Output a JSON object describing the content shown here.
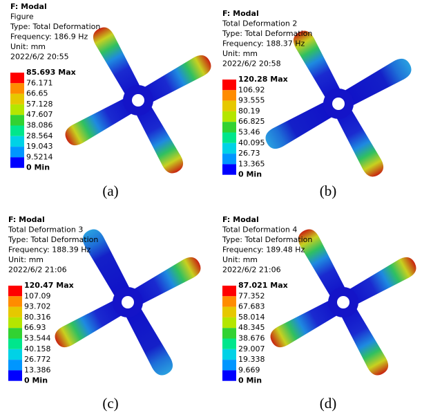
{
  "panels": [
    {
      "header": [
        "F: Modal",
        "Figure",
        "Type: Total Deformation",
        "Frequency: 186.9 Hz",
        "Unit: mm",
        "2022/6/2 20:55"
      ],
      "legend": [
        "85.693 Max",
        "76.171",
        "66.65",
        "57.128",
        "47.607",
        "38.086",
        "28.564",
        "19.043",
        "9.5214",
        "0 Min"
      ],
      "caption": "(a)"
    },
    {
      "header": [
        "F: Modal",
        "Total Deformation 2",
        "Type: Total Deformation",
        "Frequency: 188.37 Hz",
        "Unit: mm",
        "2022/6/2 20:58"
      ],
      "legend": [
        "120.28 Max",
        "106.92",
        "93.555",
        "80.19",
        "66.825",
        "53.46",
        "40.095",
        "26.73",
        "13.365",
        "0 Min"
      ],
      "caption": "(b)"
    },
    {
      "header": [
        "F: Modal",
        "Total Deformation 3",
        "Type: Total Deformation",
        "Frequency: 188.39 Hz",
        "Unit: mm",
        "2022/6/2 21:06"
      ],
      "legend": [
        "120.47 Max",
        "107.09",
        "93.702",
        "80.316",
        "66.93",
        "53.544",
        "40.158",
        "26.772",
        "13.386",
        "0 Min"
      ],
      "caption": "(c)"
    },
    {
      "header": [
        "F: Modal",
        "Total Deformation 4",
        "Type: Total Deformation",
        "Frequency: 189.48 Hz",
        "Unit: mm",
        "2022/6/2 21:06"
      ],
      "legend": [
        "87.021 Max",
        "77.352",
        "67.683",
        "58.014",
        "48.345",
        "38.676",
        "29.007",
        "19.338",
        "9.669",
        "0 Min"
      ],
      "caption": "(d)"
    }
  ]
}
